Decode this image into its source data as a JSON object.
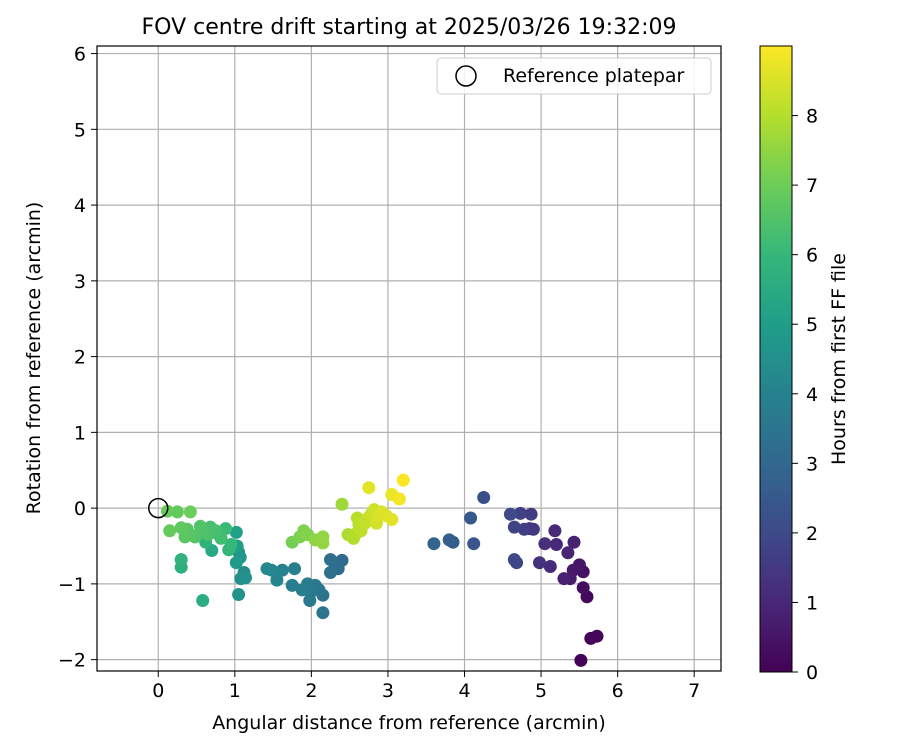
{
  "chart_data": {
    "type": "scatter",
    "title": "FOV centre drift starting at 2025/03/26 19:32:09",
    "xlabel": "Angular distance from reference (arcmin)",
    "ylabel": "Rotation from reference (arcmin)",
    "xlim": [
      -0.8,
      7.35
    ],
    "ylim": [
      -2.15,
      6.1
    ],
    "xticks": [
      "0",
      "1",
      "2",
      "3",
      "4",
      "5",
      "6",
      "7"
    ],
    "yticks": [
      "−2",
      "−1",
      "0",
      "1",
      "2",
      "3",
      "4",
      "5",
      "6"
    ],
    "grid": true,
    "legend": {
      "placement": "top-right",
      "entries": [
        "Reference platepar"
      ]
    },
    "reference_point": {
      "label": "Reference platepar",
      "x": 0,
      "y": 0
    },
    "colorbar": {
      "label": "Hours from first FF file",
      "colormap": "viridis",
      "range": [
        0,
        9.0
      ],
      "ticks": [
        "0",
        "1",
        "2",
        "3",
        "4",
        "5",
        "6",
        "7",
        "8"
      ]
    },
    "points": [
      [
        5.52,
        -2.01,
        0.05
      ],
      [
        5.65,
        -1.72,
        0.1
      ],
      [
        5.73,
        -1.69,
        0.15
      ],
      [
        5.6,
        -1.17,
        0.2
      ],
      [
        5.55,
        -1.05,
        0.3
      ],
      [
        5.55,
        -0.84,
        0.4
      ],
      [
        5.5,
        -0.75,
        0.5
      ],
      [
        5.42,
        -0.82,
        0.6
      ],
      [
        5.38,
        -0.93,
        0.7
      ],
      [
        5.3,
        -0.93,
        0.8
      ],
      [
        5.43,
        -0.45,
        0.85
      ],
      [
        5.35,
        -0.59,
        0.9
      ],
      [
        5.2,
        -0.48,
        1.0
      ],
      [
        5.18,
        -0.3,
        1.05
      ],
      [
        5.12,
        -0.77,
        1.1
      ],
      [
        5.05,
        -0.47,
        1.2
      ],
      [
        4.98,
        -0.72,
        1.3
      ],
      [
        4.85,
        -0.27,
        1.4
      ],
      [
        4.9,
        -0.28,
        1.5
      ],
      [
        4.87,
        -0.08,
        1.6
      ],
      [
        4.78,
        -0.28,
        1.65
      ],
      [
        4.73,
        -0.07,
        1.7
      ],
      [
        4.65,
        -0.25,
        1.8
      ],
      [
        4.68,
        -0.72,
        1.85
      ],
      [
        4.65,
        -0.68,
        1.9
      ],
      [
        4.6,
        -0.08,
        2.0
      ],
      [
        4.25,
        0.14,
        2.2
      ],
      [
        4.12,
        -0.47,
        2.35
      ],
      [
        4.08,
        -0.13,
        2.5
      ],
      [
        3.85,
        -0.45,
        2.6
      ],
      [
        3.8,
        -0.42,
        2.7
      ],
      [
        3.6,
        -0.47,
        2.9
      ],
      [
        2.4,
        -0.69,
        3.1
      ],
      [
        2.35,
        -0.8,
        3.15
      ],
      [
        2.3,
        -0.72,
        3.2
      ],
      [
        2.25,
        -0.68,
        3.25
      ],
      [
        2.25,
        -0.85,
        3.3
      ],
      [
        2.15,
        -1.15,
        3.4
      ],
      [
        2.15,
        -1.38,
        3.5
      ],
      [
        2.1,
        -1.08,
        3.55
      ],
      [
        2.05,
        -1.02,
        3.6
      ],
      [
        1.98,
        -1.22,
        3.65
      ],
      [
        2.0,
        -1.1,
        3.7
      ],
      [
        1.95,
        -1.0,
        3.75
      ],
      [
        1.88,
        -1.08,
        3.8
      ],
      [
        1.75,
        -1.02,
        3.85
      ],
      [
        1.78,
        -0.8,
        3.9
      ],
      [
        1.62,
        -0.82,
        4.0
      ],
      [
        1.55,
        -0.95,
        4.1
      ],
      [
        1.48,
        -0.82,
        4.15
      ],
      [
        1.42,
        -0.8,
        4.2
      ],
      [
        1.12,
        -0.85,
        4.4
      ],
      [
        1.14,
        -0.92,
        4.5
      ],
      [
        1.08,
        -0.93,
        4.55
      ],
      [
        1.05,
        -1.14,
        4.6
      ],
      [
        1.07,
        -0.65,
        4.7
      ],
      [
        1.05,
        -0.58,
        4.8
      ],
      [
        1.02,
        -0.72,
        4.9
      ],
      [
        1.03,
        -0.5,
        5.0
      ],
      [
        1.02,
        -0.32,
        5.1
      ],
      [
        0.7,
        -0.56,
        5.4
      ],
      [
        0.72,
        -0.3,
        5.5
      ],
      [
        0.58,
        -1.22,
        5.6
      ],
      [
        0.3,
        -0.78,
        5.7
      ],
      [
        0.3,
        -0.68,
        5.75
      ],
      [
        0.62,
        -0.45,
        5.8
      ],
      [
        0.92,
        -0.55,
        5.9
      ],
      [
        0.95,
        -0.48,
        6.0
      ],
      [
        0.88,
        -0.27,
        6.1
      ],
      [
        0.78,
        -0.34,
        6.2
      ],
      [
        0.82,
        -0.4,
        6.25
      ],
      [
        0.75,
        -0.3,
        6.3
      ],
      [
        0.68,
        -0.25,
        6.35
      ],
      [
        0.65,
        -0.35,
        6.4
      ],
      [
        0.6,
        -0.32,
        6.45
      ],
      [
        0.55,
        -0.24,
        6.5
      ],
      [
        0.48,
        -0.38,
        6.55
      ],
      [
        0.42,
        -0.35,
        6.6
      ],
      [
        0.38,
        -0.28,
        6.65
      ],
      [
        0.35,
        -0.38,
        6.7
      ],
      [
        0.3,
        -0.26,
        6.75
      ],
      [
        0.25,
        -0.05,
        6.8
      ],
      [
        0.15,
        -0.3,
        6.85
      ],
      [
        0.12,
        -0.04,
        6.9
      ],
      [
        0.42,
        -0.05,
        7.0
      ],
      [
        1.75,
        -0.45,
        7.1
      ],
      [
        1.85,
        -0.38,
        7.2
      ],
      [
        1.9,
        -0.3,
        7.25
      ],
      [
        1.95,
        -0.35,
        7.3
      ],
      [
        2.05,
        -0.42,
        7.45
      ],
      [
        2.15,
        -0.38,
        7.5
      ],
      [
        2.15,
        -0.46,
        7.55
      ],
      [
        2.4,
        0.05,
        7.7
      ],
      [
        2.48,
        -0.35,
        7.9
      ],
      [
        2.55,
        -0.4,
        7.95
      ],
      [
        2.58,
        -0.34,
        8.0
      ],
      [
        2.6,
        -0.13,
        8.05
      ],
      [
        2.62,
        -0.22,
        8.1
      ],
      [
        2.65,
        -0.3,
        8.15
      ],
      [
        2.7,
        -0.2,
        8.2
      ],
      [
        2.75,
        -0.12,
        8.25
      ],
      [
        2.78,
        -0.08,
        8.3
      ],
      [
        2.82,
        -0.02,
        8.35
      ],
      [
        2.85,
        -0.2,
        8.4
      ],
      [
        2.88,
        -0.1,
        8.45
      ],
      [
        2.92,
        -0.05,
        8.5
      ],
      [
        2.98,
        -0.1,
        8.55
      ],
      [
        3.05,
        -0.15,
        8.6
      ],
      [
        2.75,
        0.27,
        8.65
      ],
      [
        3.05,
        0.18,
        8.75
      ],
      [
        3.15,
        0.12,
        8.85
      ],
      [
        3.2,
        0.37,
        8.95
      ]
    ]
  }
}
